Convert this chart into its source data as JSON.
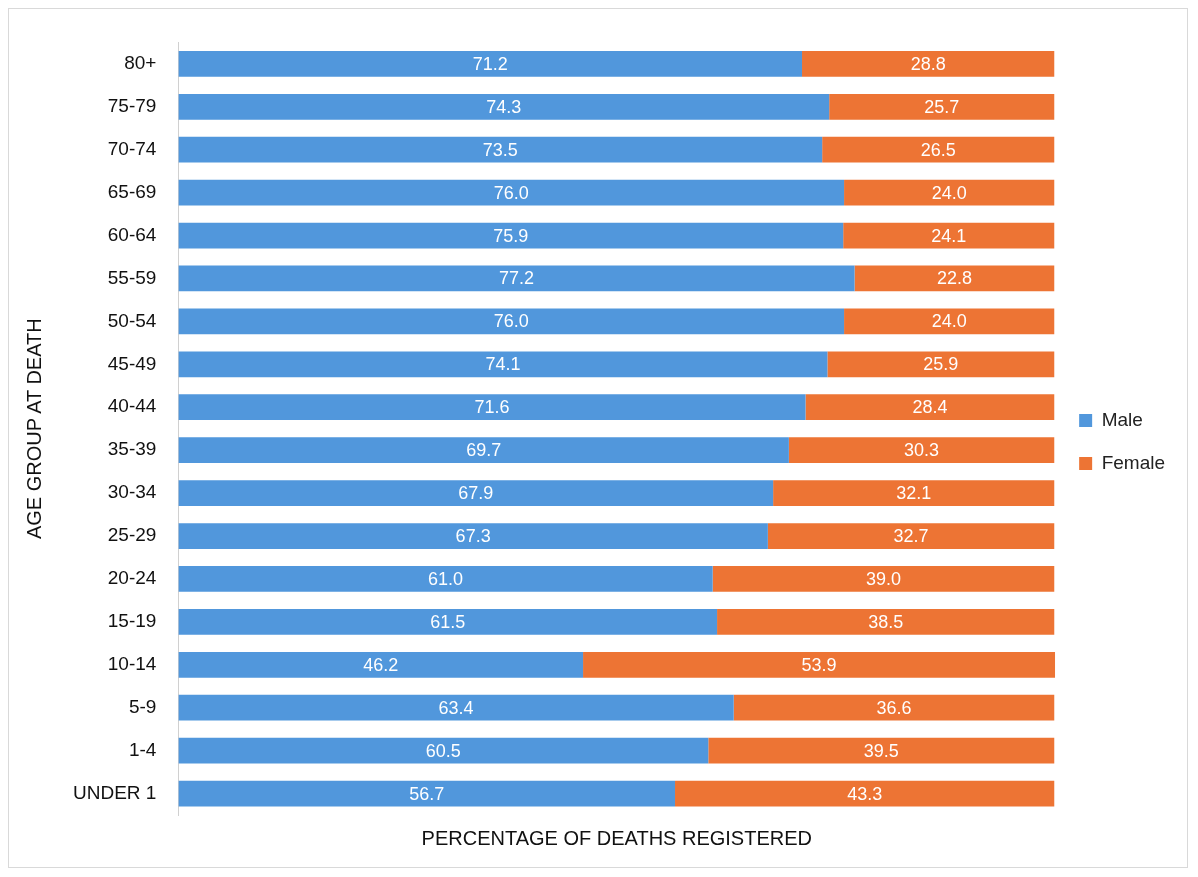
{
  "chart_data": {
    "type": "bar",
    "orientation": "horizontal",
    "stacked": true,
    "xlabel": "PERCENTAGE OF DEATHS REGISTERED",
    "ylabel": "AGE GROUP AT DEATH",
    "categories": [
      "80+",
      "75-79",
      "70-74",
      "65-69",
      "60-64",
      "55-59",
      "50-54",
      "45-49",
      "40-44",
      "35-39",
      "30-34",
      "25-29",
      "20-24",
      "15-19",
      "10-14",
      "5-9",
      "1-4",
      "UNDER 1"
    ],
    "series": [
      {
        "name": "Male",
        "color": "#5197dc",
        "values": [
          71.2,
          74.3,
          73.5,
          76.0,
          75.9,
          77.2,
          76.0,
          74.1,
          71.6,
          69.7,
          67.9,
          67.3,
          61.0,
          61.5,
          46.2,
          63.4,
          60.5,
          56.7
        ],
        "value_labels": [
          "71.2",
          "74.3",
          "73.5",
          "76.0",
          "75.9",
          "77.2",
          "76.0",
          "74.1",
          "71.6",
          "69.7",
          "67.9",
          "67.3",
          "61.0",
          "61.5",
          "46.2",
          "63.4",
          "60.5",
          "56.7"
        ]
      },
      {
        "name": "Female",
        "color": "#ed7434",
        "values": [
          28.8,
          25.7,
          26.5,
          24.0,
          24.1,
          22.8,
          24.0,
          25.9,
          28.4,
          30.3,
          32.1,
          32.7,
          39.0,
          38.5,
          53.9,
          36.6,
          39.5,
          43.3
        ],
        "value_labels": [
          "28.8",
          "25.7",
          "26.5",
          "24.0",
          "24.1",
          "22.8",
          "24.0",
          "25.9",
          "28.4",
          "30.3",
          "32.1",
          "32.7",
          "39.0",
          "38.5",
          "53.9",
          "36.6",
          "39.5",
          "43.3"
        ]
      }
    ],
    "legend": "right",
    "grid": false,
    "tick_labels": "y"
  }
}
